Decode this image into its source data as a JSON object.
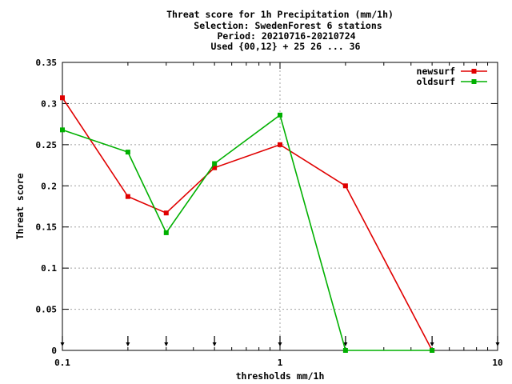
{
  "chart_data": {
    "type": "line",
    "title_lines": [
      "Threat score  for 1h Precipitation (mm/1h)",
      "Selection: SwedenForest      6 stations",
      "Period: 20210716-20210724",
      "Used {00,12} + 25 26 ... 36"
    ],
    "xlabel": "thresholds mm/1h",
    "ylabel": "Threat score",
    "x_scale": "log",
    "xlim": [
      0.1,
      10
    ],
    "ylim": [
      0,
      0.35
    ],
    "x_tick_labels": [
      "0.1",
      "1",
      "10"
    ],
    "y_tick_labels": [
      "0",
      "0.05",
      "0.1",
      "0.15",
      "0.2",
      "0.25",
      "0.3",
      "0.35"
    ],
    "grid": true,
    "legend_position": "top-right",
    "threshold_markers": [
      0.1,
      0.2,
      0.3,
      0.5,
      1,
      2,
      5,
      10
    ],
    "series": [
      {
        "name": "newsurf",
        "color": "#e00000",
        "x": [
          0.1,
          0.2,
          0.3,
          0.5,
          1,
          2,
          5
        ],
        "y": [
          0.307,
          0.187,
          0.167,
          0.222,
          0.25,
          0.2,
          0
        ]
      },
      {
        "name": "oldsurf",
        "color": "#00b000",
        "x": [
          0.1,
          0.2,
          0.3,
          0.5,
          1,
          2,
          5
        ],
        "y": [
          0.268,
          0.241,
          0.143,
          0.227,
          0.286,
          0,
          0
        ]
      }
    ]
  }
}
